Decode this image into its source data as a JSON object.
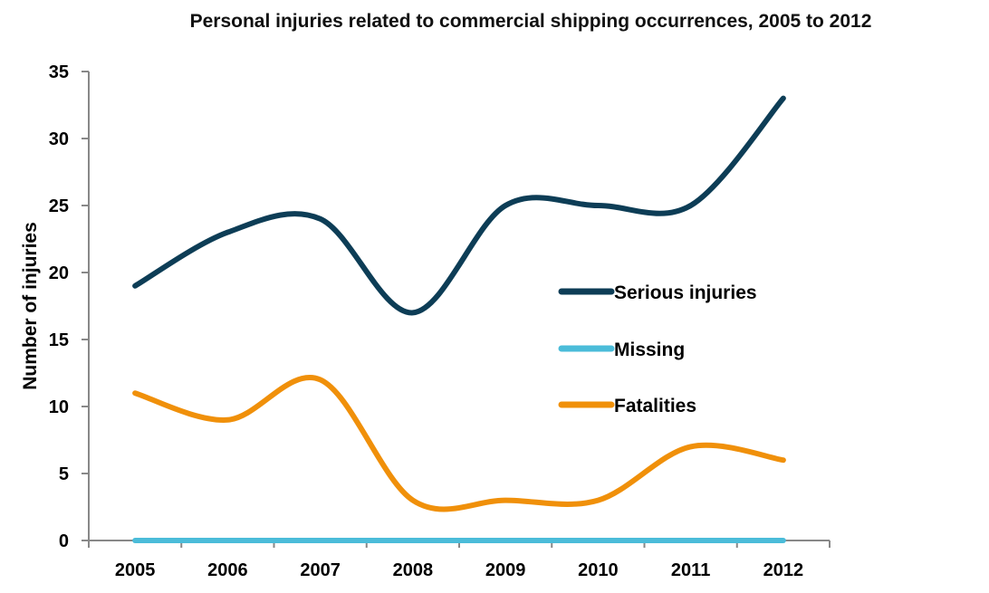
{
  "chart_data": {
    "type": "line",
    "title": "Personal injuries related to commercial shipping occurrences, 2005 to 2012",
    "xlabel": "",
    "ylabel": "Number of injuries",
    "categories": [
      "2005",
      "2006",
      "2007",
      "2008",
      "2009",
      "2010",
      "2011",
      "2012"
    ],
    "ylim": [
      0,
      35
    ],
    "yticks": [
      0,
      5,
      10,
      15,
      20,
      25,
      30,
      35
    ],
    "grid": false,
    "smooth": true,
    "legend_position": "center-right",
    "series": [
      {
        "name": "Serious injuries",
        "color": "#0d3d56",
        "values": [
          19,
          23,
          24,
          17,
          25,
          25,
          25,
          33
        ]
      },
      {
        "name": "Missing",
        "color": "#4bbcd9",
        "values": [
          0,
          0,
          0,
          0,
          0,
          0,
          0,
          0
        ]
      },
      {
        "name": "Fatalities",
        "color": "#f0900a",
        "values": [
          11,
          9,
          12,
          3,
          3,
          3,
          7,
          6
        ]
      }
    ]
  }
}
